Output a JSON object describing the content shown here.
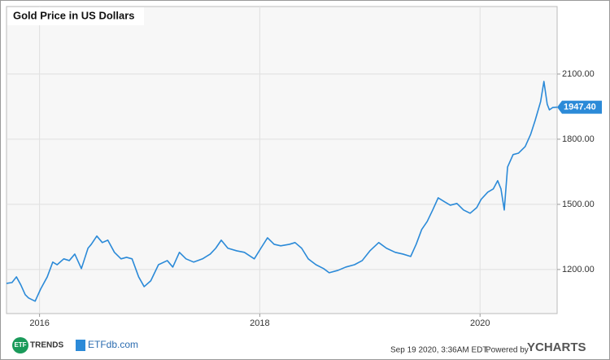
{
  "chart_data": {
    "type": "line",
    "title": "Gold Price in US Dollars",
    "x": [
      2015.7,
      2015.75,
      2015.79,
      2015.83,
      2015.87,
      2015.9,
      2015.96,
      2016.01,
      2016.07,
      2016.12,
      2016.16,
      2016.22,
      2016.27,
      2016.32,
      2016.38,
      2016.44,
      2016.47,
      2016.52,
      2016.57,
      2016.62,
      2016.68,
      2016.74,
      2016.79,
      2016.84,
      2016.9,
      2016.95,
      2017.01,
      2017.08,
      2017.16,
      2017.21,
      2017.27,
      2017.33,
      2017.4,
      2017.48,
      2017.55,
      2017.6,
      2017.65,
      2017.71,
      2017.79,
      2017.86,
      2017.95,
      2018.01,
      2018.07,
      2018.13,
      2018.19,
      2018.27,
      2018.32,
      2018.38,
      2018.44,
      2018.51,
      2018.58,
      2018.63,
      2018.71,
      2018.78,
      2018.86,
      2018.93,
      2019.0,
      2019.08,
      2019.15,
      2019.23,
      2019.3,
      2019.37,
      2019.42,
      2019.47,
      2019.52,
      2019.57,
      2019.62,
      2019.68,
      2019.73,
      2019.79,
      2019.85,
      2019.91,
      2019.97,
      2020.01,
      2020.07,
      2020.12,
      2020.16,
      2020.19,
      2020.22,
      2020.25,
      2020.3,
      2020.35,
      2020.41,
      2020.46,
      2020.5,
      2020.55,
      2020.58,
      2020.61,
      2020.63,
      2020.66,
      2020.7
    ],
    "values": [
      1136,
      1140,
      1166,
      1129,
      1084,
      1069,
      1054,
      1110,
      1166,
      1234,
      1222,
      1249,
      1241,
      1271,
      1204,
      1298,
      1316,
      1354,
      1324,
      1335,
      1279,
      1249,
      1256,
      1249,
      1166,
      1121,
      1148,
      1222,
      1241,
      1211,
      1279,
      1249,
      1234,
      1249,
      1271,
      1298,
      1335,
      1298,
      1286,
      1279,
      1249,
      1298,
      1346,
      1316,
      1309,
      1316,
      1324,
      1298,
      1249,
      1222,
      1204,
      1185,
      1196,
      1211,
      1222,
      1241,
      1286,
      1324,
      1298,
      1279,
      1271,
      1260,
      1316,
      1384,
      1421,
      1474,
      1530,
      1511,
      1496,
      1504,
      1474,
      1459,
      1485,
      1523,
      1556,
      1571,
      1609,
      1571,
      1474,
      1672,
      1729,
      1736,
      1766,
      1823,
      1886,
      1973,
      2066,
      1961,
      1935,
      1946,
      1947.4
    ],
    "color": "#2b8ad8",
    "xlim": [
      2015.7,
      2020.7
    ],
    "xticks": [
      2016,
      2018,
      2020
    ],
    "ylim": [
      997,
      2411
    ],
    "yticks": [
      {
        "value": 1200,
        "label": "1200.00"
      },
      {
        "value": 1500,
        "label": "1500.00"
      },
      {
        "value": 1800,
        "label": "1800.00"
      },
      {
        "value": 2100,
        "label": "2100.00"
      }
    ],
    "grid": true,
    "last_value": {
      "value": 1947.4,
      "label": "1947.40"
    }
  },
  "footer": {
    "timestamp": "Sep 19 2020, 3:36AM EDT.",
    "powered_by": "Powered by",
    "brand": "YCHARTS",
    "logo_left": "TRENDS",
    "logo_left_badge": "ETF",
    "logo_right": "ETFdb.com"
  }
}
